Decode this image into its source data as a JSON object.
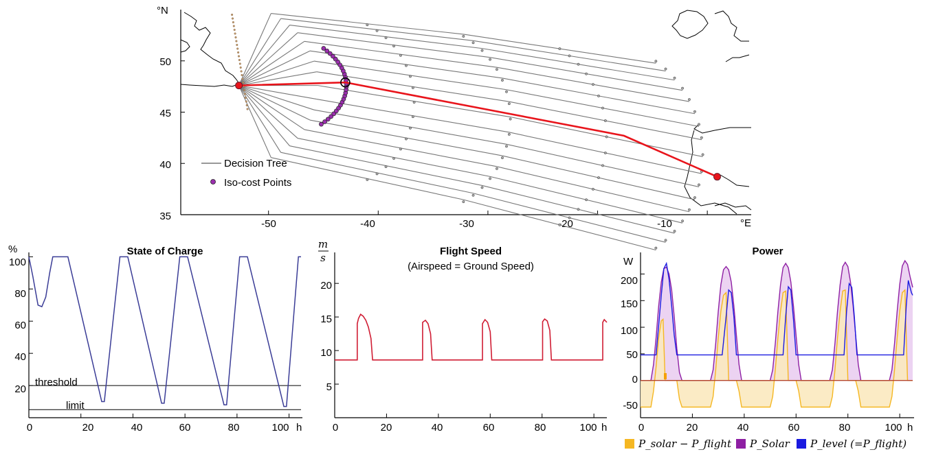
{
  "chart_data": [
    {
      "type": "map",
      "xlim": [
        -58,
        -6
      ],
      "ylim": [
        35,
        55
      ],
      "x_ticks": [
        "-50",
        "-40",
        "-30",
        "-20",
        "-10"
      ],
      "y_ticks": [
        "35",
        "40",
        "45",
        "50"
      ],
      "x_unit": "°E",
      "y_unit": "°N",
      "legend": {
        "position": "bottom-left",
        "tree": "Decision Tree",
        "iso": "Iso-cost Points"
      },
      "colors": {
        "tree": "#777777",
        "route": "#e8141b",
        "iso": "#9b2fae",
        "coast": "#000000"
      },
      "route": [
        [
          -52.7,
          47.6
        ],
        [
          -43.0,
          47.9
        ],
        [
          -17.6,
          42.7
        ],
        [
          -9.1,
          38.7
        ]
      ],
      "start": [
        -52.7,
        47.6
      ],
      "node": [
        -43.0,
        47.9
      ],
      "goal": [
        -9.1,
        38.7
      ],
      "tree_fan_angles_deg": [
        -14,
        -12,
        -10,
        -8,
        -6,
        -4,
        -2,
        0,
        2,
        4,
        6,
        8,
        10,
        12
      ],
      "tree_main_angles_deg": [
        -66,
        -58,
        -50,
        -42,
        -34,
        -26,
        -18,
        -10,
        0,
        10,
        18,
        26,
        34,
        42,
        50,
        58,
        66
      ],
      "iso_radius_deg": 9.8,
      "iso_angle_range_deg": [
        -40,
        38
      ]
    },
    {
      "type": "line",
      "title": "State of Charge",
      "y_unit": "%",
      "x_unit": "h",
      "xlim": [
        0,
        104.6
      ],
      "ylim": [
        0,
        104
      ],
      "x_ticks": [
        0,
        20,
        40,
        60,
        80,
        100
      ],
      "y_ticks": [
        20,
        40,
        60,
        80,
        100
      ],
      "color": "#3a3c96",
      "hlines": [
        {
          "label": "threshold",
          "y": 20
        },
        {
          "label": "limit",
          "y": 5
        }
      ],
      "series": [
        {
          "points": [
            [
              0,
              100
            ],
            [
              1.5,
              88
            ],
            [
              3.5,
              70
            ],
            [
              5,
              69
            ],
            [
              6.5,
              75
            ],
            [
              8,
              90
            ],
            [
              9.2,
              100
            ],
            [
              15,
              100
            ],
            [
              28,
              10
            ],
            [
              29,
              10
            ],
            [
              35,
              100
            ],
            [
              38,
              100
            ],
            [
              51,
              9
            ],
            [
              52,
              9
            ],
            [
              58,
              100
            ],
            [
              61,
              100
            ],
            [
              75,
              8
            ],
            [
              76,
              8
            ],
            [
              81,
              100
            ],
            [
              84,
              100
            ],
            [
              98,
              7
            ],
            [
              99,
              7
            ],
            [
              103.6,
              100
            ],
            [
              104.6,
              100
            ]
          ]
        }
      ]
    },
    {
      "type": "line",
      "title": "Flight Speed",
      "subtitle": "(Airspeed = Ground Speed)",
      "y_unit": {
        "num": "m",
        "den": "s"
      },
      "x_unit": "h",
      "xlim": [
        0,
        105
      ],
      "ylim": [
        0,
        24
      ],
      "x_ticks": [
        0,
        20,
        40,
        60,
        80,
        100
      ],
      "y_ticks": [
        5,
        10,
        15,
        20
      ],
      "color": "#d01c33",
      "series": [
        {
          "points": [
            [
              0,
              8.6
            ],
            [
              8.7,
              8.6
            ],
            [
              8.7,
              14.0
            ],
            [
              9.2,
              14.8
            ],
            [
              10,
              15.4
            ],
            [
              11,
              15.1
            ],
            [
              12,
              14.5
            ],
            [
              13,
              13.5
            ],
            [
              14,
              11.8
            ],
            [
              14.6,
              8.6
            ],
            [
              33.9,
              8.6
            ],
            [
              33.9,
              14.2
            ],
            [
              35,
              14.5
            ],
            [
              36,
              14.0
            ],
            [
              37,
              12.5
            ],
            [
              37.6,
              8.6
            ],
            [
              57,
              8.6
            ],
            [
              57,
              14.0
            ],
            [
              58,
              14.6
            ],
            [
              59,
              14.2
            ],
            [
              60,
              12.8
            ],
            [
              60.6,
              8.6
            ],
            [
              80.2,
              8.6
            ],
            [
              80.2,
              14.3
            ],
            [
              81,
              14.7
            ],
            [
              82,
              14.4
            ],
            [
              83,
              13.0
            ],
            [
              83.6,
              8.6
            ],
            [
              103.4,
              8.6
            ],
            [
              103.4,
              14.2
            ],
            [
              104,
              14.6
            ],
            [
              105,
              14.2
            ]
          ]
        }
      ]
    },
    {
      "type": "area",
      "title": "Power",
      "y_unit": "W",
      "x_unit": "h",
      "xlim": [
        0,
        105
      ],
      "ylim": [
        -70,
        238
      ],
      "x_ticks": [
        0,
        20,
        40,
        60,
        80,
        100
      ],
      "y_ticks": [
        -50,
        0,
        50,
        100,
        150,
        200
      ],
      "legend": {
        "position": "bottom",
        "diff": "P_solar − P_flight",
        "solar": "P_Solar",
        "level": "P_level (=P_flight)"
      },
      "colors": {
        "diff": "#f5b722",
        "solar": "#8e1fa3",
        "level": "#1a1ae0",
        "solar_fill": "#ecd3f2",
        "diff_fill": "#fbe9bf"
      },
      "series": [
        {
          "name": "P_level (=P_flight)",
          "points": [
            [
              0,
              48
            ],
            [
              6,
              48
            ],
            [
              8,
              160
            ],
            [
              9,
              210
            ],
            [
              10,
              220
            ],
            [
              11,
              190
            ],
            [
              12,
              140
            ],
            [
              13,
              85
            ],
            [
              14,
              48
            ],
            [
              31.5,
              48
            ],
            [
              33,
              120
            ],
            [
              34,
              170
            ],
            [
              35,
              165
            ],
            [
              36,
              120
            ],
            [
              37,
              48
            ],
            [
              55,
              48
            ],
            [
              56,
              120
            ],
            [
              57,
              176
            ],
            [
              58,
              170
            ],
            [
              59,
              115
            ],
            [
              60,
              48
            ],
            [
              78.5,
              48
            ],
            [
              79.5,
              130
            ],
            [
              80.5,
              182
            ],
            [
              81.5,
              175
            ],
            [
              82.5,
              120
            ],
            [
              83.5,
              48
            ],
            [
              101.5,
              48
            ],
            [
              102.5,
              140
            ],
            [
              103.3,
              188
            ],
            [
              104.5,
              165
            ],
            [
              105,
              160
            ]
          ]
        },
        {
          "name": "P_Solar",
          "points": [
            [
              0,
              0
            ],
            [
              4,
              0
            ],
            [
              5,
              30
            ],
            [
              6,
              80
            ],
            [
              7,
              140
            ],
            [
              8,
              185
            ],
            [
              9,
              210
            ],
            [
              10,
              213
            ],
            [
              11,
              200
            ],
            [
              12,
              170
            ],
            [
              13,
              120
            ],
            [
              14,
              60
            ],
            [
              15,
              15
            ],
            [
              16,
              0
            ],
            [
              27,
              0
            ],
            [
              28,
              20
            ],
            [
              29,
              70
            ],
            [
              30,
              130
            ],
            [
              31,
              180
            ],
            [
              32,
              208
            ],
            [
              33,
              214
            ],
            [
              34,
              208
            ],
            [
              35,
              185
            ],
            [
              36,
              140
            ],
            [
              37,
              85
            ],
            [
              38,
              30
            ],
            [
              39,
              0
            ],
            [
              50,
              0
            ],
            [
              51,
              20
            ],
            [
              52,
              70
            ],
            [
              53,
              130
            ],
            [
              54,
              180
            ],
            [
              55,
              212
            ],
            [
              56,
              220
            ],
            [
              57,
              212
            ],
            [
              58,
              185
            ],
            [
              59,
              140
            ],
            [
              60,
              85
            ],
            [
              61,
              30
            ],
            [
              62,
              0
            ],
            [
              73,
              0
            ],
            [
              74,
              20
            ],
            [
              75,
              70
            ],
            [
              76,
              130
            ],
            [
              77,
              180
            ],
            [
              78,
              214
            ],
            [
              79,
              222
            ],
            [
              80,
              214
            ],
            [
              81,
              185
            ],
            [
              82,
              140
            ],
            [
              83,
              85
            ],
            [
              84,
              30
            ],
            [
              85,
              0
            ],
            [
              96,
              0
            ],
            [
              97,
              20
            ],
            [
              98,
              70
            ],
            [
              99,
              130
            ],
            [
              100,
              180
            ],
            [
              101,
              215
            ],
            [
              102,
              225
            ],
            [
              103,
              218
            ],
            [
              104,
              195
            ],
            [
              105,
              175
            ]
          ]
        },
        {
          "name": "P_solar − P_flight",
          "points": [
            [
              0,
              -50
            ],
            [
              4,
              -50
            ],
            [
              5,
              -20
            ],
            [
              6,
              25
            ],
            [
              7,
              80
            ],
            [
              8,
              112
            ],
            [
              8.7,
              115
            ],
            [
              9.5,
              0
            ],
            [
              10,
              0
            ],
            [
              14,
              0
            ],
            [
              15,
              -35
            ],
            [
              16,
              -50
            ],
            [
              27,
              -50
            ],
            [
              28,
              -30
            ],
            [
              29,
              20
            ],
            [
              30,
              80
            ],
            [
              31,
              130
            ],
            [
              32,
              160
            ],
            [
              33,
              165
            ],
            [
              34,
              0
            ],
            [
              37,
              0
            ],
            [
              38,
              -20
            ],
            [
              39,
              -50
            ],
            [
              50,
              -50
            ],
            [
              51,
              -30
            ],
            [
              52,
              20
            ],
            [
              53,
              80
            ],
            [
              54,
              130
            ],
            [
              55,
              165
            ],
            [
              56,
              168
            ],
            [
              57,
              0
            ],
            [
              60,
              0
            ],
            [
              61,
              -20
            ],
            [
              62,
              -50
            ],
            [
              73,
              -50
            ],
            [
              74,
              -30
            ],
            [
              75,
              20
            ],
            [
              76,
              80
            ],
            [
              77,
              130
            ],
            [
              78,
              168
            ],
            [
              79,
              170
            ],
            [
              80,
              0
            ],
            [
              83,
              0
            ],
            [
              84,
              -20
            ],
            [
              85,
              -50
            ],
            [
              96,
              -50
            ],
            [
              97,
              -30
            ],
            [
              98,
              20
            ],
            [
              99,
              80
            ],
            [
              100,
              130
            ],
            [
              101,
              165
            ],
            [
              102,
              170
            ],
            [
              103,
              0
            ],
            [
              105,
              0
            ]
          ]
        }
      ]
    }
  ]
}
